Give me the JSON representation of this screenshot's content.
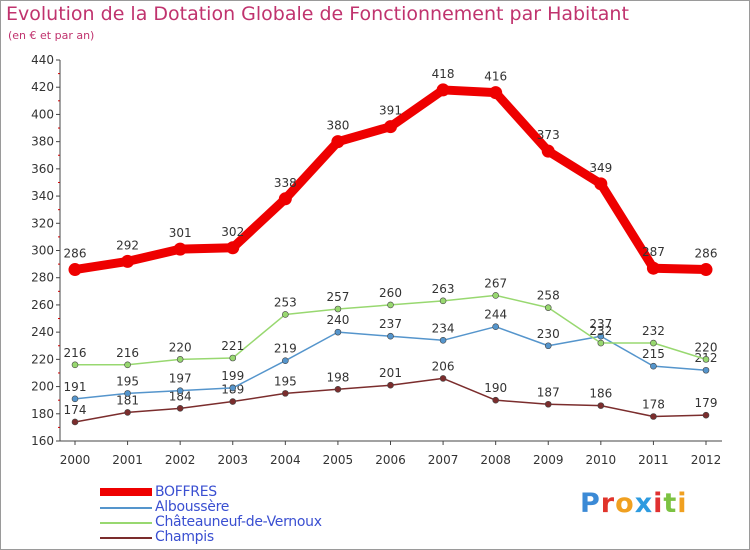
{
  "header": {
    "title": "Evolution de la Dotation Globale de Fonctionnement par Habitant",
    "subtitle": "(en € et par an)"
  },
  "logo": {
    "letters": [
      "P",
      "r",
      "o",
      "x",
      "i",
      "t",
      "i"
    ],
    "colors": [
      "#3b8ad6",
      "#e0342b",
      "#f0a020",
      "#2d9be0",
      "#e03030",
      "#7cc242",
      "#f0a020"
    ]
  },
  "chart_data": {
    "type": "line",
    "title": "Evolution de la Dotation Globale de Fonctionnement par Habitant",
    "subtitle": "(en € et par an)",
    "x": [
      "2000",
      "2001",
      "2002",
      "2003",
      "2004",
      "2005",
      "2006",
      "2007",
      "2008",
      "2009",
      "2010",
      "2011",
      "2012"
    ],
    "yticks": [
      160,
      180,
      200,
      220,
      240,
      260,
      280,
      300,
      320,
      340,
      360,
      380,
      400,
      420,
      440
    ],
    "ylim": [
      160,
      440
    ],
    "grid": "none",
    "legend": "bottom-left",
    "series": [
      {
        "name": "Champis",
        "color": "#7b2d2d",
        "values": [
          174,
          181,
          184,
          189,
          195,
          198,
          201,
          206,
          190,
          187,
          186,
          178,
          179
        ]
      },
      {
        "name": "Alboussère",
        "color": "#5595cc",
        "values": [
          191,
          195,
          197,
          199,
          219,
          240,
          237,
          234,
          244,
          230,
          237,
          215,
          212
        ]
      },
      {
        "name": "Châteauneuf-de-Vernoux",
        "color": "#98d870",
        "values": [
          216,
          216,
          220,
          221,
          253,
          257,
          260,
          263,
          267,
          258,
          232,
          232,
          220
        ]
      },
      {
        "name": "BOFFRES",
        "color": "#ee0000",
        "values": [
          286,
          292,
          301,
          302,
          338,
          380,
          391,
          418,
          416,
          373,
          349,
          287,
          286
        ]
      }
    ],
    "legend_order": [
      "BOFFRES",
      "Alboussère",
      "Châteauneuf-de-Vernoux",
      "Champis"
    ]
  }
}
